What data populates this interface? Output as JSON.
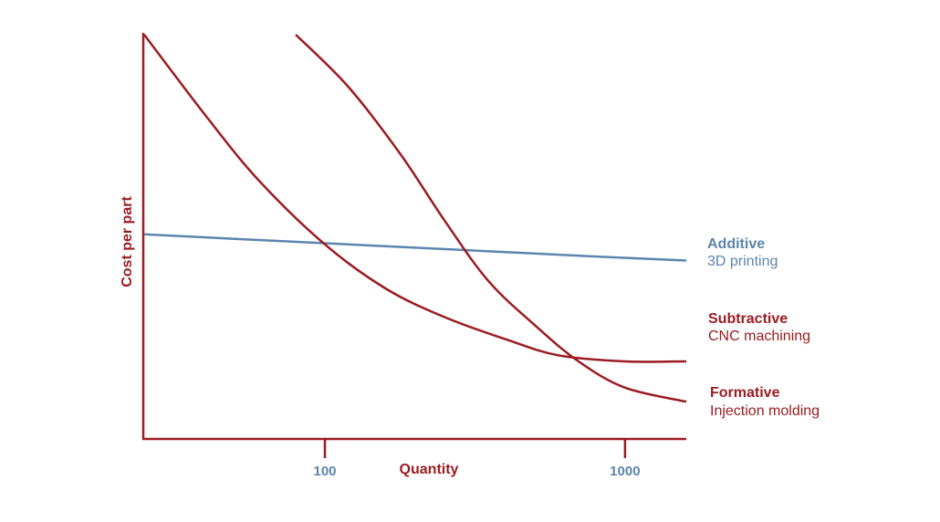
{
  "colors": {
    "axis": "#9b1c22",
    "tick_text": "#5c85ad",
    "additive": "#5c85ad",
    "subtractive": "#9b1c22",
    "formative": "#9b1c22"
  },
  "chart_data": {
    "type": "line",
    "xlabel": "Quantity",
    "ylabel": "Cost per part",
    "x_scale": "log",
    "x_ticks": [
      100,
      1000
    ],
    "x_tick_labels": [
      "100",
      "1000"
    ],
    "xlim": [
      25,
      1600
    ],
    "ylim": [
      0,
      100
    ],
    "grid": false,
    "legend_placement": "right, inline at line ends",
    "series": [
      {
        "name": "Additive",
        "description": "3D printing",
        "color": "#5c85ad",
        "x": [
          25,
          50,
          100,
          200,
          400,
          800,
          1600
        ],
        "y": [
          50.5,
          49.4,
          48.3,
          47.2,
          46.1,
          45.0,
          44.0
        ]
      },
      {
        "name": "Subtractive",
        "description": "CNC machining",
        "color": "#9b1c22",
        "x": [
          25,
          40,
          60,
          100,
          160,
          250,
          400,
          600,
          1000,
          1600
        ],
        "y": [
          100,
          80,
          64,
          48,
          37,
          30,
          24.5,
          20.5,
          19.0,
          19.0
        ]
      },
      {
        "name": "Formative",
        "description": "Injection molding",
        "color": "#9b1c22",
        "x": [
          80,
          120,
          180,
          250,
          350,
          500,
          700,
          1000,
          1600
        ],
        "y": [
          100,
          87,
          70,
          54,
          39,
          28,
          19,
          12.5,
          9.0
        ]
      }
    ]
  }
}
